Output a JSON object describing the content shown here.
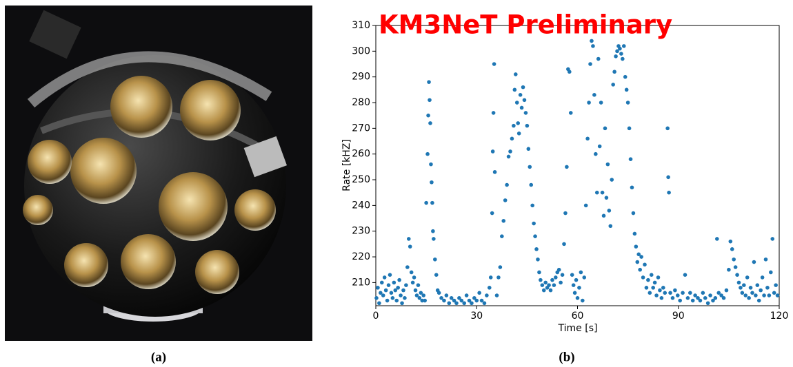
{
  "figure": {
    "captions": [
      "(a)",
      "(b)"
    ]
  },
  "chart_data": {
    "type": "scatter",
    "title": "KM3NeT Preliminary",
    "xlabel": "Time [s]",
    "ylabel": "Rate [kHZ]",
    "color": "#1f77b4",
    "title_color": "#ff0000",
    "grid": false,
    "xlim": [
      0,
      120
    ],
    "xticks": [
      0,
      30,
      60,
      90,
      120
    ],
    "ylim": [
      201,
      310
    ],
    "yticks": [
      210,
      220,
      230,
      240,
      250,
      260,
      270,
      280,
      290,
      300,
      310
    ],
    "x": [
      0.2,
      0.6,
      1,
      1.4,
      1.8,
      2.2,
      2.6,
      3,
      3.4,
      3.8,
      4.2,
      4.6,
      5,
      5.4,
      5.8,
      6.2,
      6.6,
      7,
      7.4,
      7.8,
      8.2,
      8.6,
      9,
      9.4,
      9.8,
      10.2,
      10.6,
      11,
      11.4,
      11.8,
      12.2,
      12.6,
      13,
      13.4,
      13.8,
      14.2,
      14.6,
      15,
      15.4,
      15.6,
      15.8,
      16,
      16.2,
      16.4,
      16.6,
      16.8,
      17,
      17.2,
      17.6,
      18,
      18.4,
      18.8,
      19.5,
      20.3,
      21,
      21.8,
      22.5,
      23.3,
      24,
      24.8,
      25.5,
      26.3,
      27,
      27.8,
      28.5,
      29.3,
      30,
      30.8,
      31.5,
      32.3,
      33,
      33.8,
      34.2,
      34.6,
      34.8,
      35,
      35.2,
      35.4,
      36,
      36.5,
      37,
      37.5,
      38,
      38.5,
      39,
      39.5,
      40,
      40.5,
      41,
      41.3,
      41.6,
      42,
      42.3,
      42.6,
      43,
      43.4,
      43.8,
      44.2,
      44.6,
      45,
      45.4,
      45.8,
      46.2,
      46.6,
      47,
      47.4,
      47.8,
      48.2,
      48.6,
      49,
      49.5,
      50,
      50.5,
      51,
      51.5,
      52,
      52.5,
      53,
      53.5,
      54,
      54.5,
      55,
      55.5,
      56,
      56.4,
      56.8,
      57.2,
      57.6,
      58,
      58.4,
      58.8,
      59.2,
      59.6,
      60,
      60.5,
      61,
      61.5,
      62,
      62.5,
      63,
      63.4,
      63.8,
      64.2,
      64.6,
      65,
      65.4,
      65.8,
      66.2,
      66.6,
      67,
      67.4,
      67.8,
      68.2,
      68.6,
      69,
      69.4,
      69.8,
      70.2,
      70.6,
      71,
      71.4,
      71.8,
      72.2,
      72.6,
      73,
      73.4,
      73.8,
      74.2,
      74.6,
      75,
      75.4,
      75.8,
      76.2,
      76.6,
      77,
      77.4,
      77.8,
      78.2,
      78.6,
      79,
      79.5,
      80,
      80.5,
      81,
      81.5,
      82,
      82.5,
      83,
      83.5,
      84,
      84.5,
      85,
      85.5,
      86,
      86.8,
      87,
      87.2,
      87.6,
      88.3,
      89,
      89.8,
      90.5,
      91.3,
      92,
      92.8,
      93.5,
      94.3,
      95,
      95.8,
      96.5,
      97.3,
      98,
      98.8,
      99.5,
      100.3,
      101,
      101.5,
      102,
      102.8,
      103.5,
      104.3,
      105,
      105.5,
      106,
      106.5,
      107,
      107.5,
      108,
      108.5,
      109,
      109.5,
      110,
      110.5,
      111,
      111.5,
      112,
      112.5,
      113,
      113.5,
      114,
      114.5,
      115,
      115.5,
      116,
      116.5,
      117,
      117.5,
      118,
      118.5,
      119,
      119.5
    ],
    "values": [
      204,
      208,
      202,
      206,
      210,
      205,
      212,
      207,
      203,
      209,
      213,
      206,
      204,
      210,
      207,
      203,
      208,
      211,
      205,
      202,
      207,
      204,
      209,
      216,
      227,
      224,
      214,
      210,
      212,
      207,
      205,
      209,
      204,
      206,
      203,
      205,
      203,
      241,
      260,
      275,
      288,
      281,
      272,
      256,
      249,
      241,
      230,
      227,
      219,
      213,
      207,
      206,
      204,
      203,
      205,
      202,
      204,
      203,
      202,
      204,
      203,
      202,
      205,
      203,
      202,
      204,
      203,
      206,
      203,
      202,
      205,
      208,
      212,
      237,
      261,
      276,
      295,
      253,
      205,
      212,
      216,
      228,
      234,
      242,
      248,
      259,
      261,
      266,
      271,
      285,
      291,
      280,
      272,
      268,
      283,
      278,
      286,
      281,
      276,
      271,
      262,
      255,
      248,
      240,
      233,
      228,
      223,
      219,
      214,
      211,
      209,
      207,
      210,
      208,
      209,
      207,
      211,
      209,
      212,
      214,
      215,
      210,
      213,
      225,
      237,
      255,
      293,
      292,
      276,
      213,
      209,
      206,
      211,
      204,
      208,
      214,
      203,
      212,
      240,
      266,
      280,
      295,
      304,
      302,
      283,
      260,
      245,
      297,
      263,
      280,
      245,
      236,
      270,
      243,
      256,
      238,
      232,
      250,
      287,
      292,
      298,
      300,
      302,
      301,
      299,
      297,
      302,
      290,
      285,
      280,
      270,
      258,
      247,
      237,
      229,
      224,
      218,
      221,
      215,
      220,
      212,
      217,
      208,
      211,
      206,
      213,
      208,
      210,
      205,
      212,
      207,
      204,
      208,
      206,
      270,
      251,
      245,
      206,
      204,
      207,
      205,
      203,
      206,
      213,
      204,
      206,
      203,
      205,
      204,
      203,
      206,
      204,
      202,
      205,
      203,
      204,
      227,
      206,
      205,
      204,
      207,
      215,
      226,
      223,
      219,
      216,
      213,
      210,
      208,
      206,
      209,
      205,
      212,
      204,
      208,
      206,
      218,
      205,
      209,
      203,
      207,
      212,
      205,
      219,
      208,
      205,
      214,
      227,
      206,
      209,
      205
    ]
  }
}
